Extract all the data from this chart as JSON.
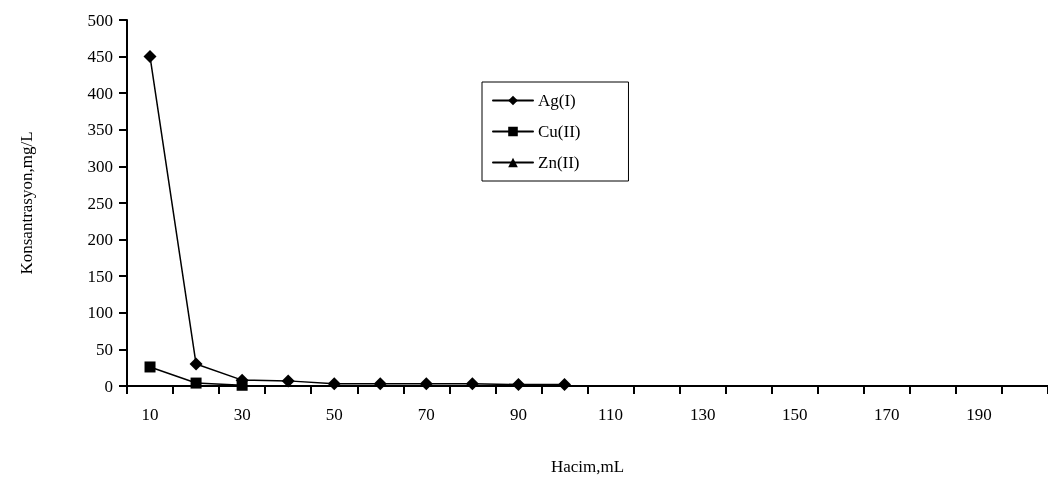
{
  "chart_data": {
    "type": "line",
    "xlabel": "Hacim,mL",
    "ylabel": "Konsantrasyon,mg/L",
    "categories": [
      "10",
      null,
      "30",
      null,
      "50",
      null,
      "70",
      null,
      "90",
      null,
      "110",
      null,
      "130",
      null,
      "150",
      null,
      "170",
      null,
      "190",
      null
    ],
    "series": [
      {
        "name": "Ag(I)",
        "color": "#000000",
        "marker": "diamond",
        "values": [
          450,
          30,
          8,
          7,
          3,
          3,
          3,
          3,
          2,
          2,
          null,
          null,
          null,
          null,
          null,
          null,
          null,
          null,
          null,
          null
        ]
      },
      {
        "name": "Cu(II)",
        "color": "#000000",
        "marker": "square",
        "values": [
          26,
          4,
          1,
          null,
          null,
          null,
          null,
          null,
          null,
          null,
          null,
          null,
          null,
          null,
          null,
          null,
          null,
          null,
          null,
          null
        ]
      },
      {
        "name": "Zn(II)",
        "color": "#000000",
        "marker": "triangle",
        "values": [
          null,
          null,
          null,
          null,
          null,
          null,
          null,
          null,
          null,
          null,
          null,
          null,
          null,
          null,
          null,
          null,
          null,
          null,
          null,
          null
        ]
      }
    ],
    "ylim": [
      0,
      500
    ],
    "yticks": [
      0,
      50,
      100,
      150,
      200,
      250,
      300,
      350,
      400,
      450,
      500
    ],
    "grid": false,
    "legend": "top",
    "line_style": "solid"
  }
}
